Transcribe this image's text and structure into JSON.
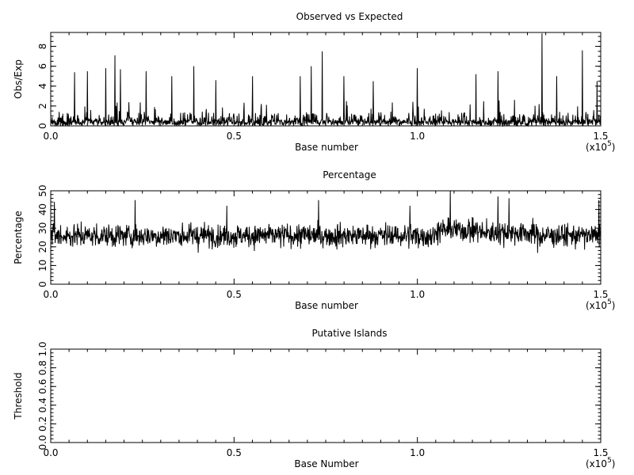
{
  "chart_data": [
    {
      "type": "line",
      "title": "Observed vs Expected",
      "xlabel": "Base number",
      "ylabel": "Obs/Exp",
      "x_multiplier_label": "(x10",
      "x_multiplier_exp": "5",
      "x_multiplier_close": ")",
      "xlim": [
        0,
        150000
      ],
      "ylim": [
        0,
        9.4
      ],
      "x_ticks": [
        0,
        50000,
        100000,
        150000
      ],
      "x_tick_labels": [
        "0.0",
        "0.5",
        "1.0",
        "1.5"
      ],
      "y_ticks": [
        0,
        2,
        4,
        6,
        8
      ],
      "y_tick_labels": [
        "0",
        "2",
        "4",
        "6",
        "8"
      ],
      "series_style": "dense noisy trace, typical 0-2.5, spikes up to ~9.3",
      "baseline": 1.0,
      "noise": 1.0,
      "floor": 0,
      "ceiling": 9.4,
      "peaks": [
        {
          "x": 6500,
          "y": 5.4
        },
        {
          "x": 10000,
          "y": 5.5
        },
        {
          "x": 15000,
          "y": 5.8
        },
        {
          "x": 17500,
          "y": 7.1
        },
        {
          "x": 19000,
          "y": 5.7
        },
        {
          "x": 26000,
          "y": 5.5
        },
        {
          "x": 33000,
          "y": 5.0
        },
        {
          "x": 39000,
          "y": 6.0
        },
        {
          "x": 45000,
          "y": 4.6
        },
        {
          "x": 55000,
          "y": 5.0
        },
        {
          "x": 68000,
          "y": 5.0
        },
        {
          "x": 71000,
          "y": 6.0
        },
        {
          "x": 74000,
          "y": 7.5
        },
        {
          "x": 80000,
          "y": 5.0
        },
        {
          "x": 88000,
          "y": 4.5
        },
        {
          "x": 100000,
          "y": 5.8
        },
        {
          "x": 116000,
          "y": 5.2
        },
        {
          "x": 122000,
          "y": 5.5
        },
        {
          "x": 134000,
          "y": 9.3
        },
        {
          "x": 138000,
          "y": 5.0
        },
        {
          "x": 145000,
          "y": 7.6
        },
        {
          "x": 149000,
          "y": 4.5
        }
      ]
    },
    {
      "type": "line",
      "title": "Percentage",
      "xlabel": "Base number",
      "ylabel": "Percentage",
      "x_multiplier_label": "(x10",
      "x_multiplier_exp": "5",
      "x_multiplier_close": ")",
      "xlim": [
        0,
        150000
      ],
      "ylim": [
        0,
        50
      ],
      "x_ticks": [
        0,
        50000,
        100000,
        150000
      ],
      "x_tick_labels": [
        "0.0",
        "0.5",
        "1.0",
        "1.5"
      ],
      "y_ticks": [
        0,
        10,
        20,
        30,
        40,
        50
      ],
      "y_tick_labels": [
        "0",
        "10",
        "20",
        "30",
        "40",
        "50"
      ],
      "series_style": "dense noisy trace fluctuating ~15-40, centred ~26",
      "baseline": 26,
      "noise": 7,
      "floor": 8,
      "ceiling": 50,
      "peaks": [
        {
          "x": 1000,
          "y": 44
        },
        {
          "x": 23000,
          "y": 45
        },
        {
          "x": 48000,
          "y": 42
        },
        {
          "x": 73000,
          "y": 45
        },
        {
          "x": 98000,
          "y": 42
        },
        {
          "x": 109000,
          "y": 50
        },
        {
          "x": 122000,
          "y": 47
        },
        {
          "x": 125000,
          "y": 46
        },
        {
          "x": 149500,
          "y": 45
        }
      ]
    },
    {
      "type": "line",
      "title": "Putative Islands",
      "xlabel": "Base Number",
      "ylabel": "Threshold",
      "x_multiplier_label": "(x10",
      "x_multiplier_exp": "5",
      "x_multiplier_close": ")",
      "xlim": [
        0,
        150000
      ],
      "ylim": [
        0,
        1.0
      ],
      "x_ticks": [
        0,
        50000,
        100000,
        150000
      ],
      "x_tick_labels": [
        "0.0",
        "0.5",
        "1.0",
        "1.5"
      ],
      "y_ticks": [
        0,
        0.2,
        0.4,
        0.6,
        0.8,
        1.0
      ],
      "y_tick_labels": [
        "0.0",
        "0.2",
        "0.4",
        "0.6",
        "0.8",
        "1.0"
      ],
      "series_style": "empty - no islands found",
      "peaks": []
    }
  ]
}
